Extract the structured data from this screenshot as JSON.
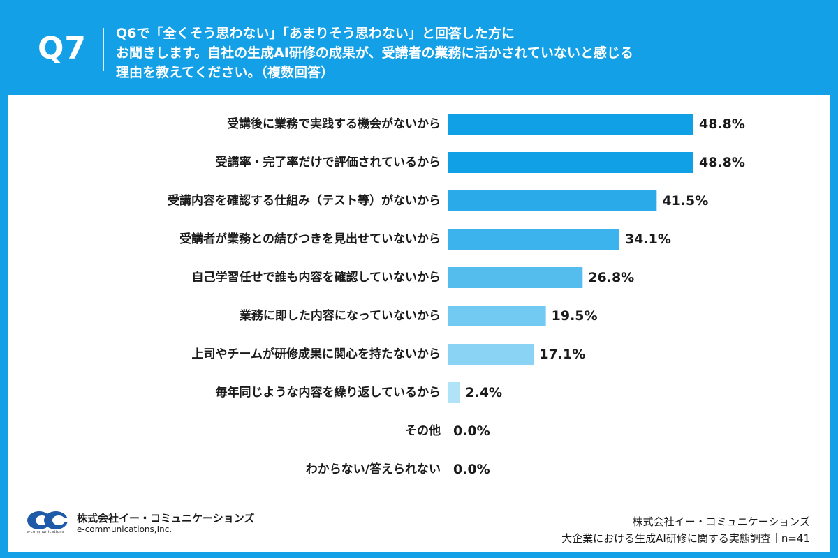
{
  "header": {
    "qnum": "Q7",
    "question_lines": [
      "Q6で「全くそう思わない」「あまりそう思わない」と回答した方に",
      "お聞きします。自社の生成AI研修の成果が、受講者の業務に活かされていないと感じる",
      "理由を教えてください。（複数回答）"
    ]
  },
  "chart_data": {
    "type": "bar",
    "orientation": "horizontal",
    "categories": [
      "受講後に業務で実践する機会がないから",
      "受講率・完了率だけで評価されているから",
      "受講内容を確認する仕組み（テスト等）がないから",
      "受講者が業務との結びつきを見出せていないから",
      "自己学習任せで誰も内容を確認していないから",
      "業務に即した内容になっていないから",
      "上司やチームが研修成果に関心を持たないから",
      "毎年同じような内容を繰り返しているから",
      "その他",
      "わからない/答えられない"
    ],
    "values": [
      48.8,
      48.8,
      41.5,
      34.1,
      26.8,
      19.5,
      17.1,
      2.4,
      0.0,
      0.0
    ],
    "value_labels": [
      "48.8%",
      "48.8%",
      "41.5%",
      "34.1%",
      "26.8%",
      "19.5%",
      "17.1%",
      "2.4%",
      "0.0%",
      "0.0%"
    ],
    "unit": "%",
    "bar_colors": [
      "#0fa0e6",
      "#0fa0e6",
      "#2aaae8",
      "#3cb3ec",
      "#55bdee",
      "#72c9f1",
      "#8ad3f4",
      "#b0e2f8",
      "#c8ecfa",
      "#c8ecfa"
    ],
    "xlim": [
      0,
      60
    ],
    "grid": false,
    "legend": "none"
  },
  "footer": {
    "company_ja": "株式会社イー・コミュニケーションズ",
    "company_en": "e-communications,Inc.",
    "logo_small": "e-communications",
    "source_company": "株式会社イー・コミュニケーションズ",
    "source_survey": "大企業における生成AI研修に関する実態調査｜n=41"
  },
  "colors": {
    "background": "#13a0e6",
    "panel": "#ffffff",
    "text": "#1a1a1a"
  }
}
